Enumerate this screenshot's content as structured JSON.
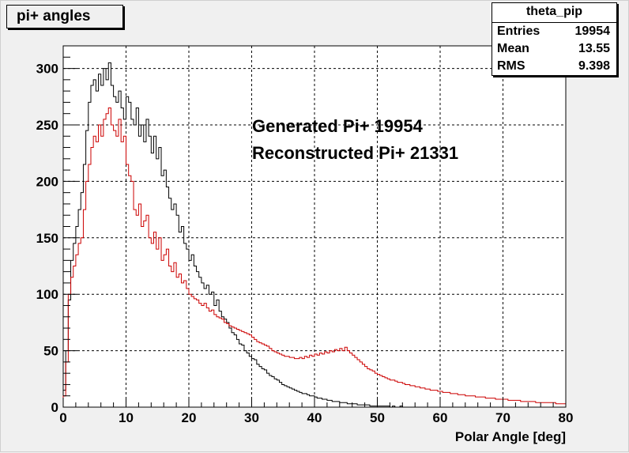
{
  "title": "pi+ angles",
  "stats": {
    "name": "theta_pip",
    "rows": [
      {
        "label": "Entries",
        "value": "19954"
      },
      {
        "label": "Mean",
        "value": "13.55"
      },
      {
        "label": "RMS",
        "value": "9.398"
      }
    ]
  },
  "annotations": [
    "Generated Pi+ 19954",
    "Reconstructed Pi+ 21331"
  ],
  "chart_data": {
    "type": "line",
    "xlabel": "Polar Angle [deg]",
    "ylabel": "",
    "xlim": [
      0,
      80
    ],
    "ylim": [
      0,
      320
    ],
    "xticks": [
      0,
      10,
      20,
      30,
      40,
      50,
      60,
      70,
      80
    ],
    "yticks": [
      0,
      50,
      100,
      150,
      200,
      250,
      300
    ],
    "grid": true,
    "bin_width": 0.4,
    "series": [
      {
        "color": "#000000",
        "x": [
          0.2,
          0.6,
          1.0,
          1.4,
          1.8,
          2.2,
          2.6,
          3.0,
          3.4,
          3.8,
          4.2,
          4.6,
          5.0,
          5.4,
          5.8,
          6.2,
          6.6,
          7.0,
          7.4,
          7.8,
          8.2,
          8.6,
          9.0,
          9.4,
          9.8,
          10.2,
          10.6,
          11.0,
          11.4,
          11.8,
          12.2,
          12.6,
          13.0,
          13.4,
          13.8,
          14.2,
          14.6,
          15.0,
          15.4,
          15.8,
          16.2,
          16.6,
          17.0,
          17.4,
          17.8,
          18.2,
          18.6,
          19.0,
          19.4,
          19.8,
          20.2,
          20.6,
          21.0,
          21.4,
          21.8,
          22.2,
          22.6,
          23.0,
          23.4,
          23.8,
          24.2,
          24.6,
          25.0,
          25.4,
          25.8,
          26.2,
          26.6,
          27.0,
          27.4,
          27.8,
          28.2,
          28.6,
          29.0,
          29.4,
          29.8,
          30.2,
          30.6,
          31.0,
          31.4,
          31.8,
          32.2,
          32.6,
          33.0,
          33.4,
          33.8,
          34.2,
          34.6,
          35.0,
          35.4,
          35.8,
          36.2,
          36.6,
          37.0,
          37.4,
          37.8,
          38.2,
          38.6,
          39.0,
          39.4,
          39.8,
          40.2,
          40.6,
          41.0,
          41.4,
          41.8,
          42.2,
          42.6,
          43.0,
          43.4,
          43.8,
          44.2,
          44.6,
          45.0,
          45.4,
          45.8,
          46.2,
          46.6,
          47.0,
          47.4,
          47.8,
          48.2,
          48.6,
          49.0,
          49.4,
          49.8,
          50.2,
          50.6,
          51.0,
          51.4,
          51.8,
          52.2,
          52.6,
          53.0,
          53.4,
          53.8,
          54.2,
          54.6,
          55.0,
          55.4,
          55.8,
          56.2,
          56.6,
          57.0,
          57.4,
          57.8,
          58.2,
          58.6,
          59.0,
          59.4,
          59.8
        ],
        "values": [
          15,
          50,
          95,
          130,
          145,
          160,
          175,
          190,
          215,
          245,
          270,
          285,
          290,
          280,
          295,
          285,
          300,
          290,
          305,
          285,
          275,
          270,
          280,
          265,
          255,
          275,
          270,
          255,
          250,
          265,
          240,
          250,
          235,
          255,
          240,
          225,
          240,
          220,
          230,
          205,
          210,
          195,
          185,
          175,
          180,
          170,
          155,
          160,
          145,
          140,
          130,
          135,
          125,
          120,
          115,
          110,
          105,
          108,
          100,
          102,
          90,
          95,
          85,
          80,
          78,
          75,
          70,
          66,
          64,
          60,
          56,
          55,
          50,
          48,
          45,
          43,
          42,
          38,
          36,
          34,
          33,
          30,
          28,
          27,
          25,
          24,
          22,
          20,
          19,
          18,
          17,
          16,
          15,
          14,
          13,
          12,
          12,
          11,
          10,
          10,
          9,
          8,
          8,
          7,
          7,
          6,
          6,
          5,
          5,
          5,
          4,
          4,
          4,
          3,
          3,
          3,
          3,
          2,
          2,
          2,
          2,
          2,
          1,
          1,
          1,
          1,
          1,
          1,
          1,
          1,
          0,
          1,
          0,
          0,
          1,
          0,
          0,
          0,
          0,
          0,
          0,
          0,
          0,
          0,
          0,
          0,
          0,
          0,
          0,
          0
        ]
      },
      {
        "color": "#cc0000",
        "x": [
          0.2,
          0.6,
          1.0,
          1.4,
          1.8,
          2.2,
          2.6,
          3.0,
          3.4,
          3.8,
          4.2,
          4.6,
          5.0,
          5.4,
          5.8,
          6.2,
          6.6,
          7.0,
          7.4,
          7.8,
          8.2,
          8.6,
          9.0,
          9.4,
          9.8,
          10.2,
          10.6,
          11.0,
          11.4,
          11.8,
          12.2,
          12.6,
          13.0,
          13.4,
          13.8,
          14.2,
          14.6,
          15.0,
          15.4,
          15.8,
          16.2,
          16.6,
          17.0,
          17.4,
          17.8,
          18.2,
          18.6,
          19.0,
          19.4,
          19.8,
          20.2,
          20.6,
          21.0,
          21.4,
          21.8,
          22.2,
          22.6,
          23.0,
          23.4,
          23.8,
          24.2,
          24.6,
          25.0,
          25.4,
          25.8,
          26.2,
          26.6,
          27.0,
          27.4,
          27.8,
          28.2,
          28.6,
          29.0,
          29.4,
          29.8,
          30.2,
          30.6,
          31.0,
          31.4,
          31.8,
          32.2,
          32.6,
          33.0,
          33.4,
          33.8,
          34.2,
          34.6,
          35.0,
          35.4,
          35.8,
          36.2,
          36.6,
          37.0,
          37.4,
          37.8,
          38.2,
          38.6,
          39.0,
          39.4,
          39.8,
          40.2,
          40.6,
          41.0,
          41.4,
          41.8,
          42.2,
          42.6,
          43.0,
          43.4,
          43.8,
          44.2,
          44.6,
          45.0,
          45.4,
          45.8,
          46.2,
          46.6,
          47.0,
          47.4,
          47.8,
          48.2,
          48.6,
          49.0,
          49.4,
          49.8,
          50.2,
          50.6,
          51.0,
          51.4,
          51.8,
          52.2,
          52.6,
          53.0,
          53.4,
          53.8,
          54.2,
          54.6,
          55.0,
          55.4,
          55.8,
          56.2,
          56.6,
          57.0,
          57.4,
          57.8,
          58.2,
          58.6,
          59.0,
          59.4,
          59.8,
          60.2,
          60.6,
          61.0,
          61.4,
          61.8,
          62.2,
          62.6,
          63.0,
          63.4,
          63.8,
          64.2,
          64.6,
          65.0,
          65.4,
          65.8,
          66.2,
          66.6,
          67.0,
          67.4,
          67.8,
          68.2,
          68.6,
          69.0,
          69.4,
          69.8,
          70.2,
          70.6,
          71.0,
          71.4,
          71.8,
          72.2,
          72.6,
          73.0,
          73.4,
          73.8,
          74.2,
          74.6,
          75.0,
          75.4,
          75.8,
          76.2,
          76.6,
          77.0,
          77.4,
          77.8,
          78.2,
          78.6,
          79.0,
          79.4,
          79.8
        ],
        "values": [
          10,
          40,
          100,
          115,
          125,
          135,
          145,
          150,
          175,
          200,
          215,
          230,
          240,
          235,
          250,
          240,
          255,
          260,
          265,
          250,
          245,
          240,
          255,
          235,
          240,
          215,
          205,
          200,
          175,
          170,
          180,
          160,
          165,
          170,
          150,
          145,
          155,
          140,
          150,
          130,
          135,
          140,
          125,
          120,
          128,
          115,
          118,
          110,
          112,
          105,
          100,
          98,
          96,
          95,
          92,
          90,
          92,
          88,
          85,
          86,
          82,
          80,
          79,
          78,
          75,
          74,
          72,
          71,
          70,
          69,
          68,
          67,
          66,
          65,
          64,
          62,
          60,
          58,
          57,
          56,
          55,
          54,
          52,
          50,
          49,
          48,
          47,
          46,
          45,
          45,
          44,
          44,
          43,
          43,
          44,
          43,
          45,
          44,
          46,
          45,
          47,
          46,
          48,
          47,
          49,
          48,
          50,
          49,
          51,
          50,
          52,
          50,
          53,
          50,
          48,
          46,
          44,
          42,
          40,
          38,
          36,
          34,
          33,
          32,
          30,
          29,
          28,
          27,
          26,
          25,
          24,
          24,
          23,
          22,
          22,
          21,
          20,
          20,
          19,
          19,
          18,
          18,
          17,
          17,
          16,
          16,
          15,
          15,
          15,
          14,
          14,
          13,
          13,
          13,
          12,
          12,
          12,
          11,
          11,
          11,
          10,
          10,
          10,
          10,
          9,
          9,
          9,
          9,
          8,
          8,
          8,
          8,
          7,
          7,
          7,
          7,
          7,
          6,
          6,
          6,
          6,
          6,
          5,
          5,
          5,
          5,
          5,
          5,
          4,
          4,
          4,
          4,
          4,
          4,
          4,
          4,
          3,
          3,
          3,
          3
        ]
      }
    ]
  }
}
